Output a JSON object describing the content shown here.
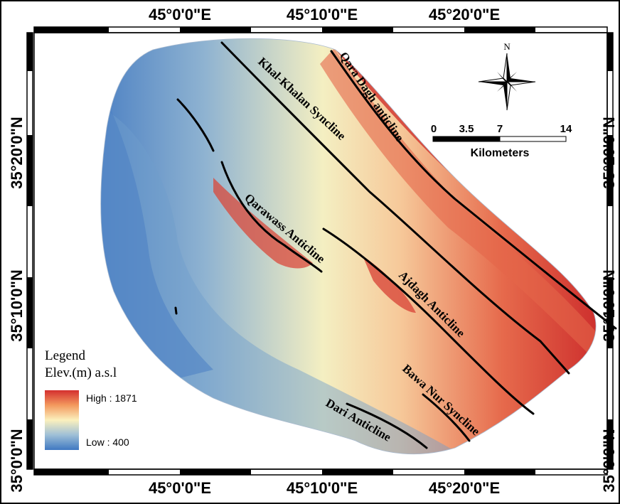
{
  "top_labels": [
    "45°0'0\"E",
    "45°10'0\"E",
    "45°20'0\"E"
  ],
  "bottom_labels": [
    "45°0'0\"E",
    "45°10'0\"E",
    "45°20'0\"E"
  ],
  "left_labels": [
    "35°20'0\"N",
    "35°10'0\"N",
    "35°0'0\"N"
  ],
  "right_labels": [
    "35°20'0\"N",
    "35°10'0\"N",
    "35°0'0\"N"
  ],
  "features": {
    "qara_dagh": "Qara Dagh anticline",
    "khal_khalan": "Khal-Khalan Syncline",
    "qarawass": "Qarawass Anticline",
    "ajdagh": "Ajdagh Anticline",
    "bawa_nur": "Bawa Nur Syncline",
    "dari": "Dari Anticline"
  },
  "north_arrow": {
    "label": "N"
  },
  "scale_bar": {
    "ticks": [
      "0",
      "3.5",
      "7",
      "14"
    ],
    "unit": "Kilometers"
  },
  "legend": {
    "title": "Legend",
    "subtitle": "Elev.(m) a.s.l",
    "high_label": "High : 1871",
    "low_label": "Low : 400",
    "high_value": 1871,
    "low_value": 400,
    "colors": [
      "#c8232c",
      "#f08a5a",
      "#fbe9b0",
      "#7fb0d0",
      "#3a78c4"
    ]
  }
}
